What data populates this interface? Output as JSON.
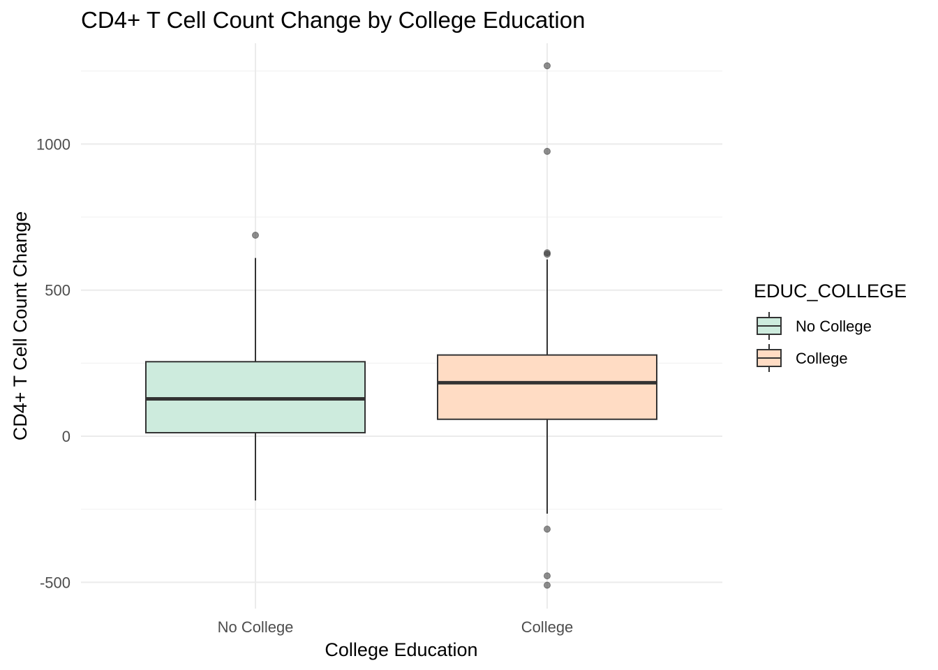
{
  "chart_data": {
    "type": "boxplot",
    "title": "CD4+ T Cell Count Change by College Education",
    "xlabel": "College Education",
    "ylabel": "CD4+ T Cell Count Change",
    "categories": [
      "No College",
      "College"
    ],
    "ylim": [
      -590,
      1345
    ],
    "yticks": [
      -500,
      0,
      500,
      1000
    ],
    "grid": true,
    "legend": {
      "title": "EDUC_COLLEGE",
      "position": "right",
      "entries": [
        "No College",
        "College"
      ]
    },
    "series": [
      {
        "name": "No College",
        "color": "#cdebdd",
        "whisker_low": -220,
        "q1": 12,
        "median": 128,
        "q3": 255,
        "whisker_high": 610,
        "outliers": [
          688
        ]
      },
      {
        "name": "College",
        "color": "#ffdcc4",
        "whisker_low": -265,
        "q1": 58,
        "median": 183,
        "q3": 278,
        "whisker_high": 605,
        "outliers": [
          1268,
          975,
          628,
          623,
          -318,
          -478,
          -510
        ]
      }
    ]
  }
}
